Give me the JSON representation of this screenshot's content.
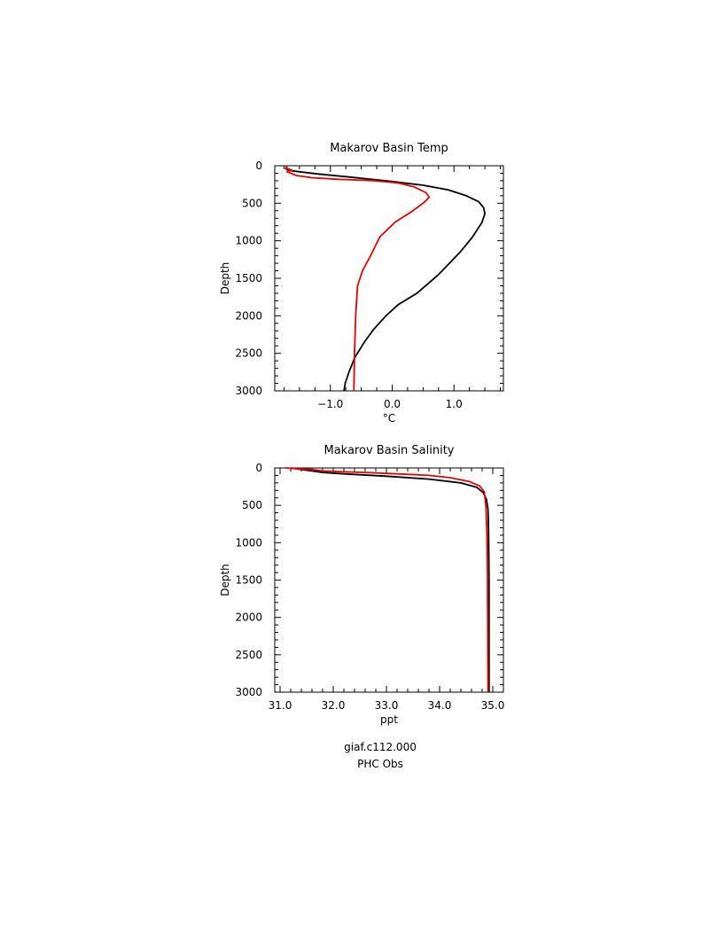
{
  "chart_data": [
    {
      "type": "line",
      "title": "Makarov Basin Temp",
      "xlabel": "°C",
      "ylabel": "Depth",
      "xlim": [
        -1.9,
        1.8
      ],
      "ylim": [
        3000,
        0
      ],
      "y_inverted": true,
      "xticks": [
        -1.0,
        0.0,
        1.0
      ],
      "xtick_labels": [
        "−1.0",
        "0.0",
        "1.0"
      ],
      "yticks": [
        0,
        500,
        1000,
        1500,
        2000,
        2500,
        3000
      ],
      "ytick_labels": [
        "0",
        "500",
        "1000",
        "1500",
        "2000",
        "2500",
        "3000"
      ],
      "grid": false,
      "series": [
        {
          "name": "giaf.c112.000",
          "color": "#000000",
          "points": [
            [
              -1.7,
              0
            ],
            [
              -1.72,
              40
            ],
            [
              -1.68,
              60
            ],
            [
              -1.5,
              80
            ],
            [
              -1.2,
              110
            ],
            [
              -0.7,
              150
            ],
            [
              0.0,
              210
            ],
            [
              0.5,
              260
            ],
            [
              0.9,
              320
            ],
            [
              1.2,
              400
            ],
            [
              1.4,
              480
            ],
            [
              1.48,
              560
            ],
            [
              1.5,
              640
            ],
            [
              1.45,
              760
            ],
            [
              1.3,
              950
            ],
            [
              1.1,
              1150
            ],
            [
              0.75,
              1450
            ],
            [
              0.4,
              1700
            ],
            [
              0.1,
              1850
            ],
            [
              -0.1,
              2000
            ],
            [
              -0.3,
              2180
            ],
            [
              -0.45,
              2350
            ],
            [
              -0.6,
              2550
            ],
            [
              -0.7,
              2750
            ],
            [
              -0.76,
              2900
            ],
            [
              -0.78,
              3000
            ]
          ]
        },
        {
          "name": "PHC Obs",
          "color": "#ee0000",
          "points": [
            [
              -1.7,
              0
            ],
            [
              -1.72,
              30
            ],
            [
              -1.62,
              60
            ],
            [
              -1.7,
              80
            ],
            [
              -1.55,
              130
            ],
            [
              -1.3,
              160
            ],
            [
              -0.9,
              180
            ],
            [
              -0.3,
              200
            ],
            [
              0.1,
              230
            ],
            [
              0.35,
              280
            ],
            [
              0.55,
              360
            ],
            [
              0.6,
              420
            ],
            [
              0.5,
              500
            ],
            [
              0.3,
              620
            ],
            [
              0.05,
              750
            ],
            [
              -0.2,
              950
            ],
            [
              -0.35,
              1200
            ],
            [
              -0.48,
              1400
            ],
            [
              -0.56,
              1600
            ],
            [
              -0.59,
              2000
            ],
            [
              -0.61,
              2500
            ],
            [
              -0.62,
              3000
            ]
          ]
        }
      ]
    },
    {
      "type": "line",
      "title": "Makarov Basin Salinity",
      "xlabel": "ppt",
      "ylabel": "Depth",
      "xlim": [
        30.9,
        35.2
      ],
      "ylim": [
        3000,
        0
      ],
      "y_inverted": true,
      "xticks": [
        31.0,
        32.0,
        33.0,
        34.0,
        35.0
      ],
      "xtick_labels": [
        "31.0",
        "32.0",
        "33.0",
        "34.0",
        "35.0"
      ],
      "yticks": [
        0,
        500,
        1000,
        1500,
        2000,
        2500,
        3000
      ],
      "ytick_labels": [
        "0",
        "500",
        "1000",
        "1500",
        "2000",
        "2500",
        "3000"
      ],
      "grid": false,
      "series": [
        {
          "name": "giaf.c112.000",
          "color": "#000000",
          "points": [
            [
              31.2,
              0
            ],
            [
              31.4,
              20
            ],
            [
              31.6,
              40
            ],
            [
              31.8,
              60
            ],
            [
              32.2,
              80
            ],
            [
              33.0,
              110
            ],
            [
              33.8,
              150
            ],
            [
              34.4,
              200
            ],
            [
              34.7,
              260
            ],
            [
              34.82,
              330
            ],
            [
              34.88,
              420
            ],
            [
              34.91,
              550
            ],
            [
              34.92,
              800
            ],
            [
              34.93,
              1500
            ],
            [
              34.93,
              3000
            ]
          ]
        },
        {
          "name": "PHC Obs",
          "color": "#ee0000",
          "points": [
            [
              31.1,
              0
            ],
            [
              31.3,
              10
            ],
            [
              31.6,
              20
            ],
            [
              31.8,
              40
            ],
            [
              32.1,
              50
            ],
            [
              32.6,
              60
            ],
            [
              33.2,
              80
            ],
            [
              33.8,
              100
            ],
            [
              34.2,
              130
            ],
            [
              34.55,
              180
            ],
            [
              34.75,
              240
            ],
            [
              34.84,
              320
            ],
            [
              34.87,
              500
            ],
            [
              34.89,
              900
            ],
            [
              34.9,
              1500
            ],
            [
              34.91,
              3000
            ]
          ]
        }
      ]
    }
  ],
  "legend": {
    "items": [
      {
        "label": "giaf.c112.000",
        "color": "#000000"
      },
      {
        "label": "PHC Obs",
        "color": "#ee0000"
      }
    ]
  }
}
